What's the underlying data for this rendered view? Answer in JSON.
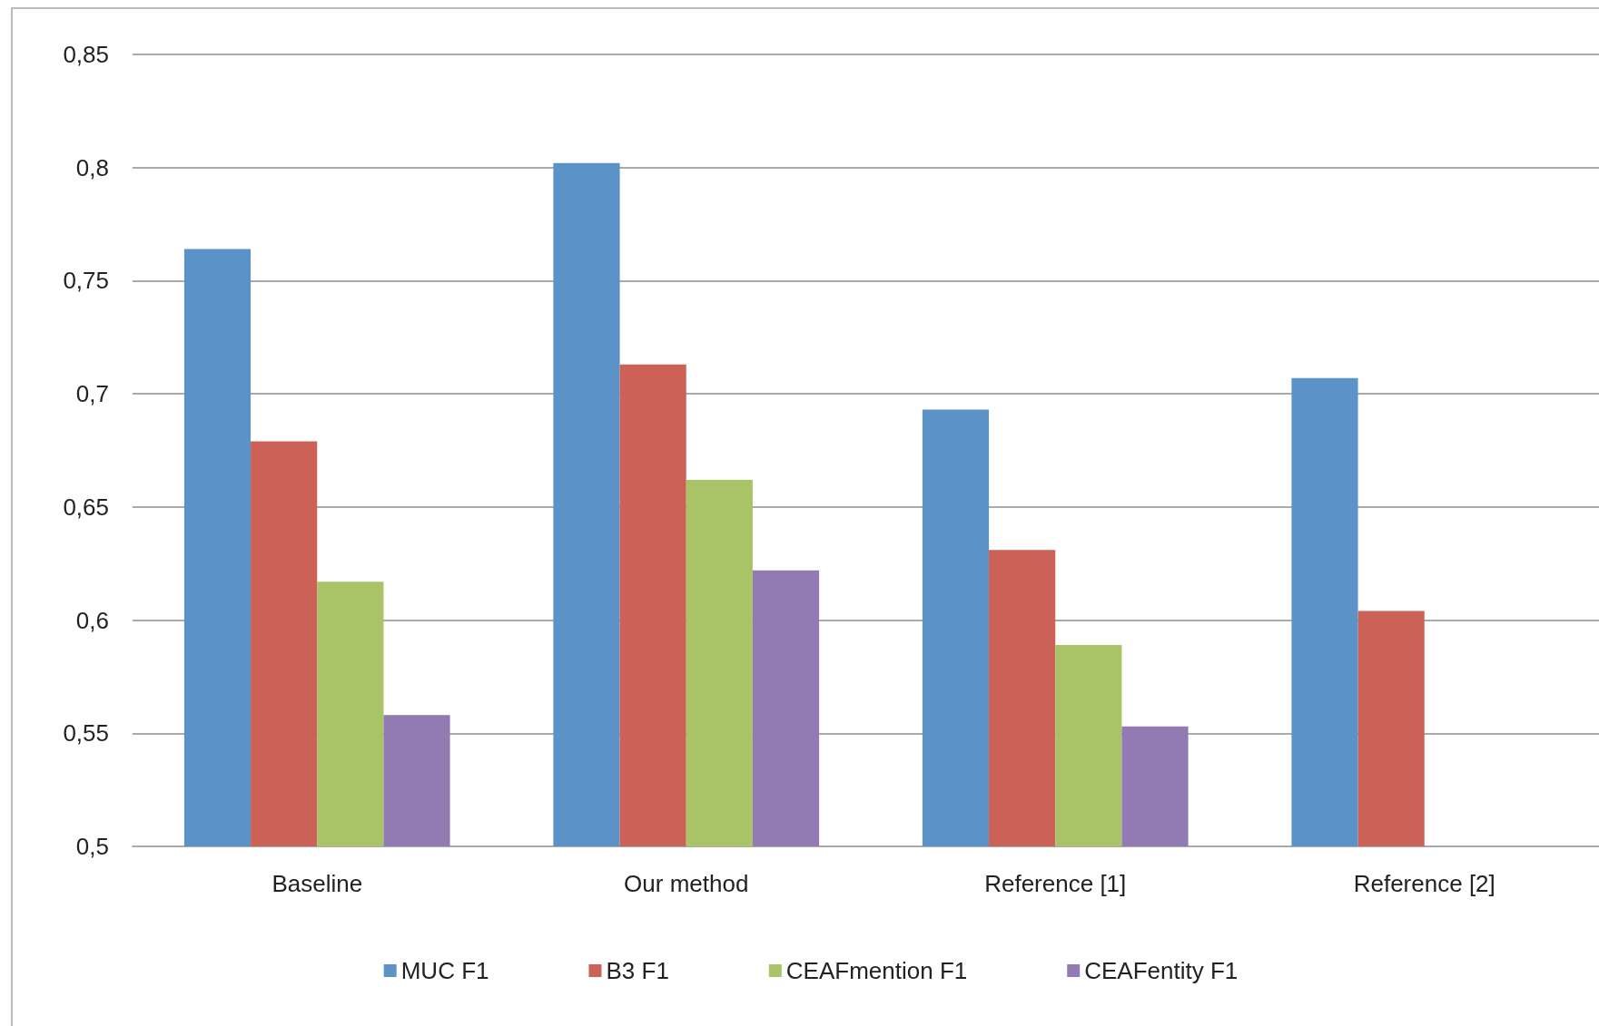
{
  "chart_data": {
    "type": "bar",
    "categories": [
      "Baseline",
      "Our method",
      "Reference [1]",
      "Reference [2]"
    ],
    "series": [
      {
        "name": "MUC F1",
        "color": "#5b93c9",
        "values": [
          0.764,
          0.802,
          0.693,
          0.707
        ]
      },
      {
        "name": "B3 F1",
        "color": "#cc6157",
        "values": [
          0.679,
          0.713,
          0.631,
          0.604
        ]
      },
      {
        "name": "CEAFmention F1",
        "color": "#a9c466",
        "values": [
          0.617,
          0.662,
          0.589,
          null
        ]
      },
      {
        "name": "CEAFentity F1",
        "color": "#927ab3",
        "values": [
          0.558,
          0.622,
          0.553,
          null
        ]
      }
    ],
    "ylim": [
      0.5,
      0.85
    ],
    "yticks": [
      {
        "value": 0.5,
        "label": "0,5"
      },
      {
        "value": 0.55,
        "label": "0,55"
      },
      {
        "value": 0.6,
        "label": "0,6"
      },
      {
        "value": 0.65,
        "label": "0,65"
      },
      {
        "value": 0.7,
        "label": "0,7"
      },
      {
        "value": 0.75,
        "label": "0,75"
      },
      {
        "value": 0.8,
        "label": "0,8"
      },
      {
        "value": 0.85,
        "label": "0,85"
      }
    ],
    "grid": "y",
    "legend": "bottom"
  }
}
